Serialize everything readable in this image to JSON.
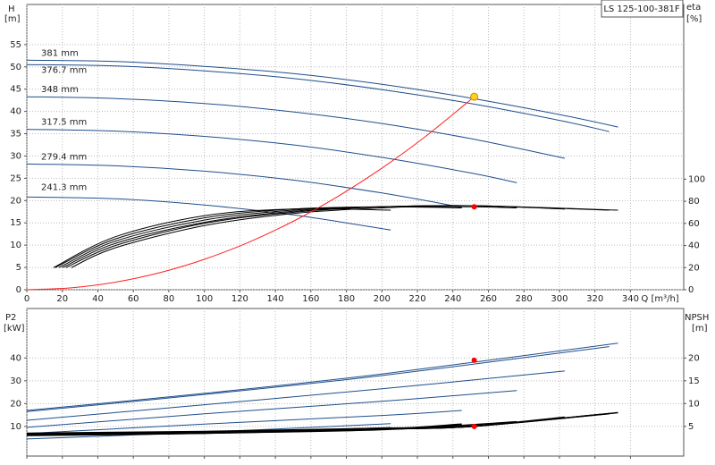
{
  "chart_data": [
    {
      "type": "line",
      "title": "LS 125-100-381F",
      "ylabel": "H",
      "yunit": "[m]",
      "y2label": "eta",
      "y2unit": "[%]",
      "xlabel": "Q [m³/h]",
      "show_xtick_labels": true,
      "grid": true,
      "xlim": [
        0,
        370
      ],
      "ylim": [
        0,
        64
      ],
      "y2lim": [
        0,
        258
      ],
      "xticks": [
        0,
        20,
        40,
        60,
        80,
        100,
        120,
        140,
        160,
        180,
        200,
        220,
        240,
        260,
        280,
        300,
        320,
        340
      ],
      "yticks": [
        0,
        5,
        10,
        15,
        20,
        25,
        30,
        35,
        40,
        45,
        50,
        55
      ],
      "y2ticks": [
        0,
        20,
        40,
        60,
        80,
        100
      ],
      "series": [
        {
          "name": "381 mm",
          "color": "#1f4e8c",
          "x": [
            0,
            50,
            100,
            150,
            200,
            250,
            300,
            333
          ],
          "values": [
            51.5,
            51.2,
            50.1,
            48.5,
            46.1,
            43.0,
            39.3,
            36.5
          ]
        },
        {
          "name": "376.7 mm",
          "color": "#1f4e8c",
          "x": [
            0,
            50,
            100,
            150,
            200,
            250,
            300,
            328
          ],
          "values": [
            50.5,
            50.2,
            49.1,
            47.4,
            44.9,
            41.8,
            38.0,
            35.5
          ]
        },
        {
          "name": "348 mm",
          "color": "#1f4e8c",
          "x": [
            0,
            50,
            100,
            150,
            200,
            250,
            303
          ],
          "values": [
            43.3,
            42.9,
            41.8,
            39.9,
            37.3,
            33.9,
            29.5
          ]
        },
        {
          "name": "317.5 mm",
          "color": "#1f4e8c",
          "x": [
            0,
            50,
            100,
            150,
            200,
            250,
            276
          ],
          "values": [
            36.0,
            35.6,
            34.4,
            32.5,
            29.7,
            26.2,
            24.0
          ]
        },
        {
          "name": "279.4 mm",
          "color": "#1f4e8c",
          "x": [
            0,
            50,
            100,
            150,
            200,
            245
          ],
          "values": [
            28.2,
            27.8,
            26.6,
            24.6,
            21.7,
            18.5
          ]
        },
        {
          "name": "241.3 mm",
          "color": "#1f4e8c",
          "x": [
            0,
            50,
            100,
            150,
            205
          ],
          "values": [
            20.8,
            20.4,
            19.0,
            16.8,
            13.4
          ]
        },
        {
          "color": "#000000",
          "axis": "y2",
          "x": [
            25,
            50,
            100,
            150,
            200,
            250,
            333
          ],
          "values": [
            20,
            38,
            58,
            69,
            74,
            76,
            72
          ]
        },
        {
          "color": "#000000",
          "axis": "y2",
          "x": [
            22,
            50,
            100,
            150,
            200,
            250,
            328
          ],
          "values": [
            20,
            40,
            60,
            70,
            75,
            76,
            72
          ]
        },
        {
          "color": "#000000",
          "axis": "y2",
          "x": [
            20,
            50,
            100,
            150,
            200,
            250,
            303
          ],
          "values": [
            20,
            42,
            61,
            71,
            75,
            76,
            73
          ]
        },
        {
          "color": "#000000",
          "axis": "y2",
          "x": [
            18,
            50,
            100,
            150,
            200,
            250,
            276
          ],
          "values": [
            20,
            44,
            63,
            72,
            75,
            75,
            74
          ]
        },
        {
          "color": "#000000",
          "axis": "y2",
          "x": [
            16,
            50,
            100,
            150,
            200,
            245
          ],
          "values": [
            20,
            46,
            65,
            73,
            75,
            74
          ]
        },
        {
          "color": "#000000",
          "axis": "y2",
          "x": [
            15,
            50,
            100,
            150,
            205
          ],
          "values": [
            20,
            48,
            67,
            73,
            72
          ]
        },
        {
          "color": "#ff2020",
          "x": [
            0,
            25,
            50,
            75,
            100,
            125,
            150,
            175,
            200,
            225,
            252
          ],
          "values": [
            0,
            0.43,
            1.7,
            3.84,
            6.82,
            10.65,
            15.34,
            20.88,
            27.27,
            34.52,
            43.3
          ]
        }
      ],
      "points": [
        {
          "x": 252,
          "y": 43.3,
          "color": "#ffd21f"
        },
        {
          "x": 252,
          "y": 75,
          "axis": "y2",
          "color": "#ff0000"
        }
      ]
    },
    {
      "type": "line",
      "ylabel": "P2",
      "yunit": "[kW]",
      "y2label": "NPSH",
      "y2unit": "[m]",
      "show_xtick_labels": false,
      "grid": true,
      "xlim": [
        0,
        370
      ],
      "ylim": [
        -3,
        61.7
      ],
      "y2lim": [
        -1.5,
        30.85
      ],
      "xticks": [
        0,
        20,
        40,
        60,
        80,
        100,
        120,
        140,
        160,
        180,
        200,
        220,
        240,
        260,
        280,
        300,
        320,
        340
      ],
      "yticks": [
        10,
        20,
        30,
        40
      ],
      "y2ticks": [
        5,
        10,
        15,
        20
      ],
      "series": [
        {
          "color": "#1f4e8c",
          "x": [
            0,
            100,
            200,
            333
          ],
          "values": [
            17.0,
            24.5,
            33.0,
            46.5
          ]
        },
        {
          "color": "#1f4e8c",
          "x": [
            0,
            100,
            200,
            328
          ],
          "values": [
            16.5,
            24.0,
            32.3,
            45.0
          ]
        },
        {
          "color": "#1f4e8c",
          "x": [
            0,
            100,
            200,
            303
          ],
          "values": [
            12.7,
            19.5,
            26.5,
            34.3
          ]
        },
        {
          "color": "#1f4e8c",
          "x": [
            0,
            100,
            200,
            276
          ],
          "values": [
            9.6,
            15.5,
            21.0,
            25.7
          ]
        },
        {
          "color": "#1f4e8c",
          "x": [
            0,
            100,
            200,
            245
          ],
          "values": [
            6.9,
            11.0,
            14.8,
            17.0
          ]
        },
        {
          "color": "#1f4e8c",
          "x": [
            0,
            100,
            205
          ],
          "values": [
            4.5,
            7.5,
            11.2
          ]
        },
        {
          "color": "#000000",
          "axis": "y2",
          "x": [
            0,
            100,
            200,
            250,
            333
          ],
          "values": [
            3.5,
            3.9,
            4.6,
            5.0,
            8.0
          ]
        },
        {
          "color": "#000000",
          "axis": "y2",
          "x": [
            0,
            100,
            200,
            250,
            328
          ],
          "values": [
            3.4,
            3.8,
            4.5,
            5.0,
            7.8
          ]
        },
        {
          "color": "#000000",
          "axis": "y2",
          "x": [
            0,
            100,
            200,
            250,
            303
          ],
          "values": [
            3.3,
            3.7,
            4.4,
            5.0,
            7.0
          ]
        },
        {
          "color": "#000000",
          "axis": "y2",
          "x": [
            0,
            100,
            200,
            276
          ],
          "values": [
            3.2,
            3.6,
            4.3,
            6.0
          ]
        },
        {
          "color": "#000000",
          "axis": "y2",
          "x": [
            0,
            100,
            200,
            245
          ],
          "values": [
            3.1,
            3.5,
            4.4,
            5.5
          ]
        },
        {
          "color": "#000000",
          "axis": "y2",
          "x": [
            0,
            100,
            205
          ],
          "values": [
            3.0,
            3.5,
            4.7
          ]
        }
      ],
      "points": [
        {
          "x": 252,
          "y": 39.0,
          "color": "#ff0000"
        },
        {
          "x": 252,
          "y": 5.0,
          "axis": "y2",
          "color": "#ff0000"
        }
      ]
    }
  ]
}
